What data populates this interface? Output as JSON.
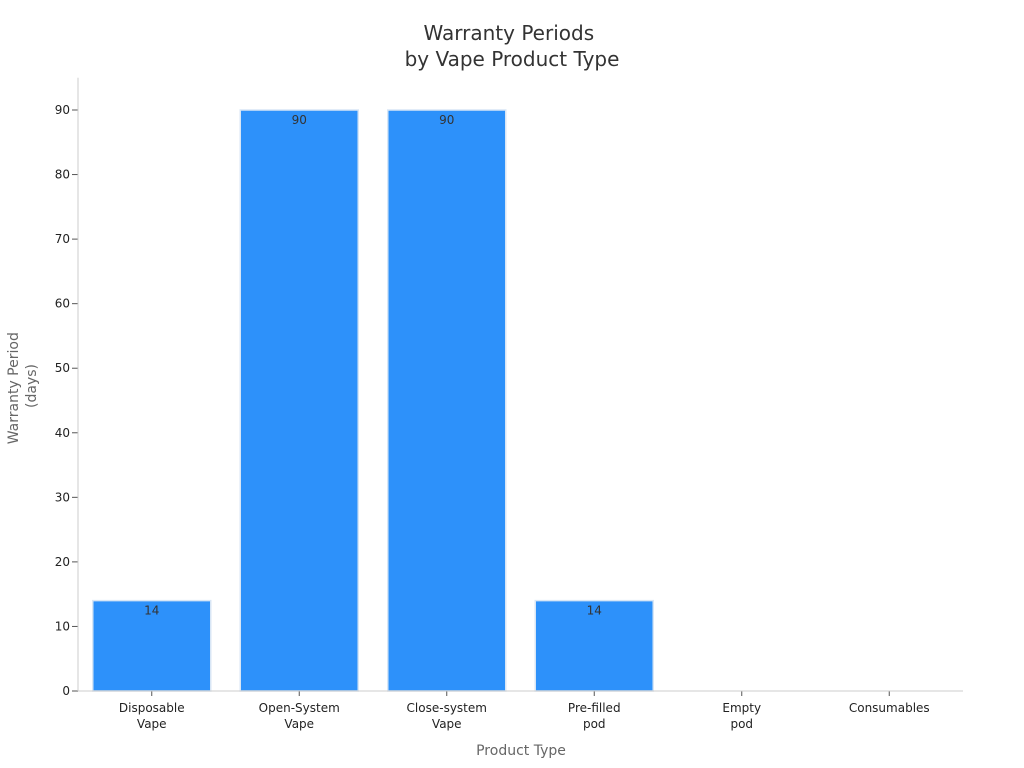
{
  "chart_data": {
    "type": "bar",
    "title": [
      "Warranty Periods",
      "by Vape Product Type"
    ],
    "xlabel": "Product Type",
    "ylabel": [
      "Warranty Period",
      "(days)"
    ],
    "categories": [
      [
        "Disposable",
        "Vape"
      ],
      [
        "Open-System",
        "Vape"
      ],
      [
        "Close-system",
        "Vape"
      ],
      [
        "Pre-filled",
        "pod"
      ],
      [
        "Empty",
        "pod"
      ],
      [
        "Consumables"
      ]
    ],
    "values": [
      14,
      90,
      90,
      14,
      0,
      0
    ],
    "value_labels": [
      "14",
      "90",
      "90",
      "14",
      "",
      ""
    ],
    "yticks": [
      0,
      10,
      20,
      30,
      40,
      50,
      60,
      70,
      80,
      90
    ],
    "ylim": [
      0,
      95
    ],
    "grid": false,
    "bar_color": "#2d91fa",
    "bar_edge_color": "#d8e6f5"
  }
}
